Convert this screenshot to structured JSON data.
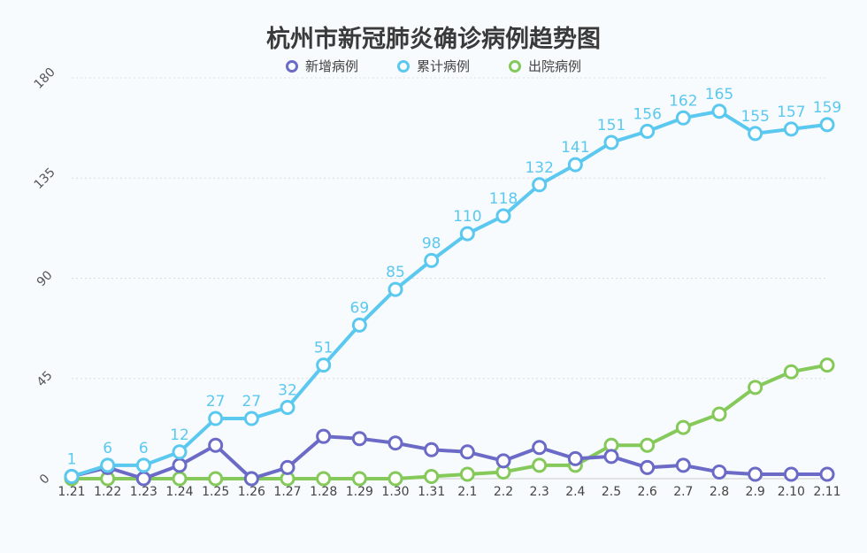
{
  "chart_data": {
    "type": "line",
    "title": "杭州市新冠肺炎确诊病例趋势图",
    "categories": [
      "1.21",
      "1.22",
      "1.23",
      "1.24",
      "1.25",
      "1.26",
      "1.27",
      "1.28",
      "1.29",
      "1.30",
      "1.31",
      "2.1",
      "2.2",
      "2.3",
      "2.4",
      "2.5",
      "2.6",
      "2.7",
      "2.8",
      "2.9",
      "2.10",
      "2.11"
    ],
    "ylim": [
      0,
      180
    ],
    "yticks": [
      0,
      45,
      90,
      135,
      180
    ],
    "grid": true,
    "legend_position": "top",
    "series": [
      {
        "name": "新增病例",
        "color": "#6b6bc7",
        "values": [
          1,
          5,
          0,
          6,
          15,
          0,
          5,
          19,
          18,
          16,
          13,
          12,
          8,
          14,
          9,
          10,
          5,
          6,
          3,
          2,
          2,
          2
        ]
      },
      {
        "name": "累计病例",
        "color": "#5bc8ef",
        "labels": true,
        "values": [
          1,
          6,
          6,
          12,
          27,
          27,
          32,
          51,
          69,
          85,
          98,
          110,
          118,
          132,
          141,
          151,
          156,
          162,
          165,
          155,
          157,
          159
        ]
      },
      {
        "name": "出院病例",
        "color": "#84c95a",
        "values": [
          0,
          0,
          0,
          0,
          0,
          0,
          0,
          0,
          0,
          0,
          1,
          2,
          3,
          6,
          6,
          15,
          15,
          23,
          29,
          41,
          48,
          51
        ]
      }
    ]
  }
}
